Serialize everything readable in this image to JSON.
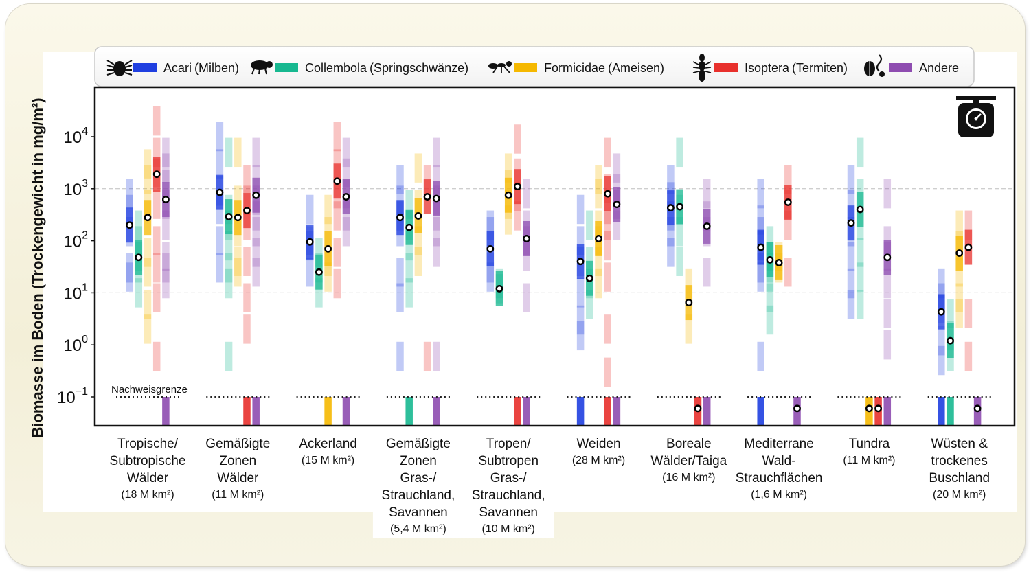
{
  "chart_data": {
    "type": "strip",
    "ylabel": "Biomasse im Boden (Trockengewicht in mg/m²)",
    "yscale": "log",
    "ylim": [
      0.05,
      100000
    ],
    "yticks": [
      {
        "value": 0.1,
        "base": "10",
        "exp": "−1"
      },
      {
        "value": 1,
        "base": "10",
        "exp": "0"
      },
      {
        "value": 10,
        "base": "10",
        "exp": "1"
      },
      {
        "value": 100,
        "base": "10",
        "exp": "2"
      },
      {
        "value": 1000,
        "base": "10",
        "exp": "3"
      },
      {
        "value": 10000,
        "base": "10",
        "exp": "4"
      }
    ],
    "detection_limit": {
      "label": "Nachweisgrenze",
      "value": 0.1
    },
    "gridlines": [
      10,
      1000
    ],
    "legend": {
      "placement": "top",
      "entries": [
        {
          "key": "acari",
          "label": "Acari",
          "sub": "(Milben)",
          "color": "#1f3fe0",
          "icon": "mite-icon"
        },
        {
          "key": "collembola",
          "label": "Collembola",
          "sub": "(Springschwänze)",
          "color": "#17b890",
          "icon": "springtail-icon"
        },
        {
          "key": "formicidae",
          "label": "Formicidae",
          "sub": "(Ameisen)",
          "color": "#f5b800",
          "icon": "ant-icon"
        },
        {
          "key": "isoptera",
          "label": "Isoptera",
          "sub": "(Termiten)",
          "color": "#e8302c",
          "icon": "termite-icon"
        },
        {
          "key": "andere",
          "label": "Andere",
          "sub": "",
          "color": "#8e4cb0",
          "icon": "beetle-spider-icon"
        }
      ]
    },
    "categories": [
      {
        "lines": [
          "Tropische/",
          "Subtropische",
          "Wälder"
        ],
        "area": "(18 M km²)"
      },
      {
        "lines": [
          "Gemäßigte",
          "Zonen",
          "Wälder"
        ],
        "area": "(11 M km²)"
      },
      {
        "lines": [
          "Ackerland"
        ],
        "area": "(15 M km²)"
      },
      {
        "lines": [
          "Gemäßigte",
          "Zonen",
          "Gras-/",
          "Strauchland,",
          "Savannen"
        ],
        "area": "(5,4 M km²)"
      },
      {
        "lines": [
          "Tropen/",
          "Subtropen",
          "Gras-/",
          "Strauchland,",
          "Savannen"
        ],
        "area": "(10 M km²)"
      },
      {
        "lines": [
          "Weiden"
        ],
        "area": "(28 M km²)"
      },
      {
        "lines": [
          "Boreale",
          "Wälder/Taiga"
        ],
        "area": "(16 M km²)"
      },
      {
        "lines": [
          "Mediterrane",
          "Wald-",
          "Strauchflächen"
        ],
        "area": "(1,6 M km²)"
      },
      {
        "lines": [
          "Tundra"
        ],
        "area": "(11 M km²)"
      },
      {
        "lines": [
          "Wüsten &",
          "trockenes",
          "Buschland"
        ],
        "area": "(20 M km²)"
      }
    ],
    "series": [
      {
        "key": "acari",
        "name": "Acari (Milben)",
        "median": [
          200,
          850,
          95,
          280,
          70,
          40,
          430,
          75,
          220,
          4.3
        ],
        "observations": [
          [
            800,
            400,
            150,
            30,
            20
          ],
          [
            10000,
            3000,
            900,
            400,
            100,
            30
          ],
          [
            400,
            100,
            80,
            25
          ],
          [
            1500,
            600,
            300,
            150,
            25,
            8,
            0.6
          ],
          [
            200,
            150,
            30,
            20
          ],
          [
            400,
            100,
            40,
            10,
            3,
            1.5,
            0.1
          ],
          [
            1500,
            700,
            300,
            150,
            60
          ],
          [
            800,
            250,
            150,
            80,
            30,
            20,
            0.6,
            0.1
          ],
          [
            1500,
            500,
            150,
            50,
            15,
            6
          ],
          [
            15,
            8,
            5,
            1.2,
            0.5,
            0.1
          ]
        ]
      },
      {
        "key": "collembola",
        "name": "Collembola (Springschwänze)",
        "median": [
          48,
          290,
          25,
          180,
          12,
          19,
          450,
          43,
          400,
          1.2
        ],
        "observations": [
          [
            200,
            100,
            50,
            30,
            10
          ],
          [
            5000,
            400,
            200,
            80,
            30,
            15,
            0.6
          ],
          [
            60,
            30,
            10
          ],
          [
            500,
            200,
            80,
            30,
            10,
            0.1
          ],
          [
            15,
            12
          ],
          [
            200,
            40,
            15,
            6
          ],
          [
            5000,
            400,
            150,
            40
          ],
          [
            100,
            50,
            30,
            20,
            8,
            3
          ],
          [
            5000,
            800,
            200,
            60,
            20,
            6
          ],
          [
            4,
            1.5,
            0.6,
            0.1
          ]
        ]
      },
      {
        "key": "formicidae",
        "name": "Formicidae (Ameisen)",
        "median": [
          280,
          280,
          70,
          300,
          750,
          110,
          6.5,
          38,
          0.06,
          58
        ],
        "observations": [
          [
            3000,
            1500,
            500,
            60,
            25,
            6,
            2
          ],
          [
            5000,
            600,
            150,
            40,
            25
          ],
          [
            400,
            150,
            40,
            20,
            0.1
          ],
          [
            2500,
            500,
            100,
            40
          ],
          [
            2500,
            1200,
            500,
            250
          ],
          [
            1500,
            800,
            200,
            100,
            40,
            15
          ],
          [
            15,
            2
          ],
          [
            50,
            30
          ],
          [
            0.1
          ],
          [
            200,
            80,
            25,
            8,
            4
          ]
        ]
      },
      {
        "key": "isoptera",
        "name": "Isoptera (Termiten)",
        "median": [
          1900,
          380,
          1400,
          700,
          1100,
          800,
          0.06,
          550,
          0.06,
          75
        ],
        "observations": [
          [
            20000,
            5000,
            2000,
            500,
            100,
            30,
            8,
            0.6
          ],
          [
            1500,
            600,
            200,
            40,
            8,
            2,
            0.1
          ],
          [
            10000,
            3000,
            800,
            300,
            60,
            15
          ],
          [
            1500,
            0.6
          ],
          [
            9000,
            2000,
            700,
            300,
            0.1
          ],
          [
            5000,
            1000,
            400,
            200,
            80,
            20,
            2,
            0.3,
            0.1
          ],
          [
            0.1
          ],
          [
            1500,
            500,
            200,
            25
          ],
          [
            0.1
          ],
          [
            200,
            4,
            0.6
          ]
        ]
      },
      {
        "key": "andere",
        "name": "Andere",
        "median": [
          620,
          750,
          700,
          650,
          110,
          500,
          190,
          0.06,
          48,
          0.06
        ],
        "observations": [
          [
            5000,
            2500,
            1200,
            500,
            200,
            50,
            30,
            15,
            0.1
          ],
          [
            5000,
            1500,
            600,
            300,
            150,
            60,
            25,
            0.1
          ],
          [
            5000,
            2000,
            800,
            300,
            150,
            0.1
          ],
          [
            5000,
            1500,
            600,
            300,
            150,
            60,
            0.6,
            0.1
          ],
          [
            800,
            200,
            100,
            50,
            8,
            0.1
          ],
          [
            2500,
            1000,
            500,
            200,
            0.1
          ],
          [
            800,
            300,
            150,
            25,
            0.1
          ],
          [
            0.1
          ],
          [
            800,
            100,
            50,
            15,
            4,
            1,
            0.1
          ],
          [
            0.1
          ]
        ]
      }
    ]
  }
}
